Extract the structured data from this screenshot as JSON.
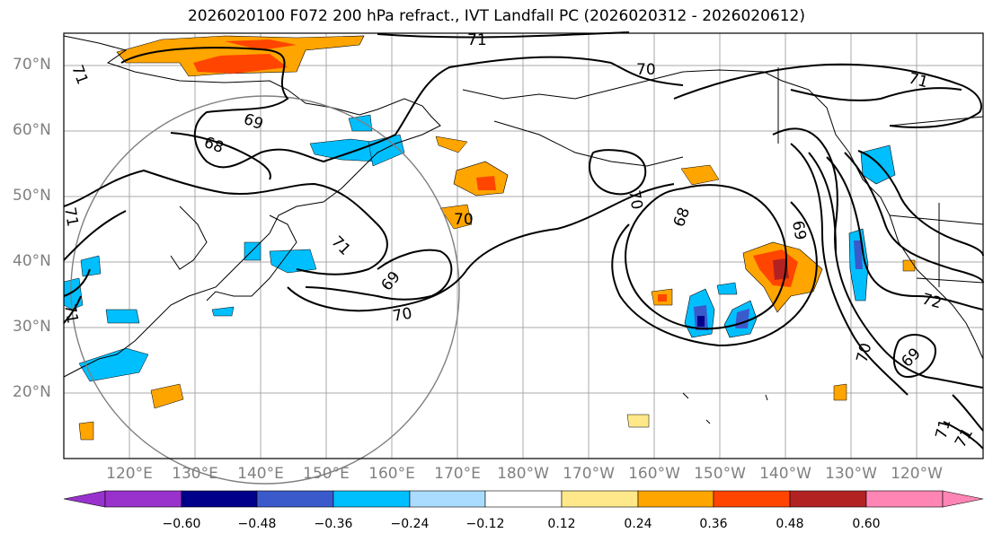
{
  "title": "2026020100 F072 200 hPa refract., IVT Landfall PC (2026020312 - 2026020612)",
  "lat_labels": [
    "70°N",
    "60°N",
    "50°N",
    "40°N",
    "30°N",
    "20°N"
  ],
  "lon_labels": [
    "120°E",
    "130°E",
    "140°E",
    "150°E",
    "160°E",
    "170°E",
    "180°W",
    "170°W",
    "160°W",
    "150°W",
    "140°W",
    "130°W",
    "120°W"
  ],
  "contour_labels": [
    "71",
    "71",
    "70",
    "71",
    "69",
    "68",
    "70",
    "71",
    "69",
    "70",
    "70",
    "68",
    "69",
    "71",
    "72",
    "70",
    "69",
    "71",
    "71",
    "71"
  ],
  "colorbar": {
    "ticks": [
      "−0.60",
      "−0.48",
      "−0.36",
      "−0.24",
      "−0.12",
      "0.12",
      "0.24",
      "0.36",
      "0.48",
      "0.60"
    ],
    "colors": [
      "#9932cc",
      "#00008b",
      "#3a5acc",
      "#00bfff",
      "#aadcff",
      "#ffffff",
      "#ffe88a",
      "#ffa500",
      "#ff4500",
      "#b22222",
      "#ff85b4"
    ]
  },
  "map_extent": {
    "lon_min": 110,
    "lon_max": 250,
    "lat_min": 10,
    "lat_max": 75
  }
}
